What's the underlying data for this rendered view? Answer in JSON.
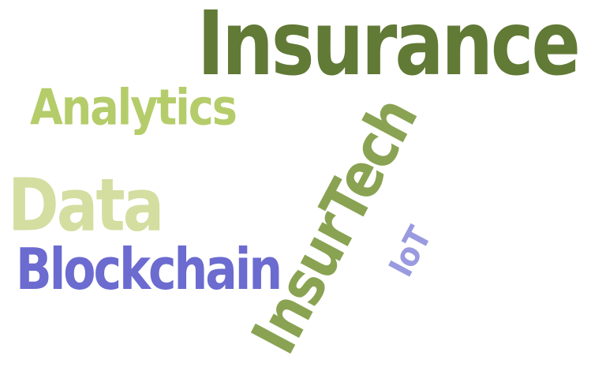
{
  "words": {
    "insurance": {
      "text": "Insurance",
      "color": "#617a36"
    },
    "analytics": {
      "text": "Analytics",
      "color": "#b5cc6a"
    },
    "data": {
      "text": "Data",
      "color": "#d3dea0"
    },
    "blockchain": {
      "text": "Blockchain",
      "color": "#6b6bd0"
    },
    "insurtech": {
      "text": "InsurTech",
      "color": "#89a352"
    },
    "iot": {
      "text": "IoT",
      "color": "#9a9ae0"
    }
  }
}
